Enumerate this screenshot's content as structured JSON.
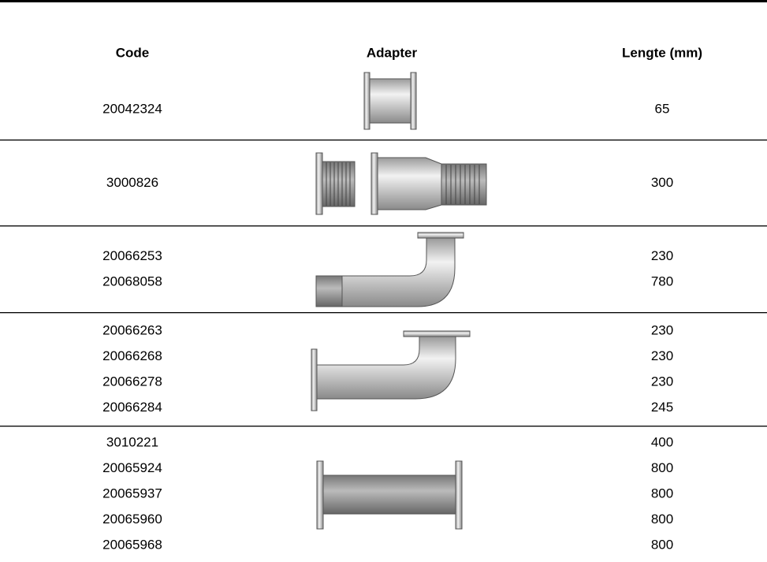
{
  "table": {
    "headers": [
      "Code",
      "Adapter",
      "Lengte (mm)"
    ],
    "groups": [
      {
        "codes": [
          "20042324"
        ],
        "lengths": [
          "65"
        ]
      },
      {
        "codes": [
          "3000826"
        ],
        "lengths": [
          "300"
        ]
      },
      {
        "codes": [
          "20066253",
          "20068058"
        ],
        "lengths": [
          "230",
          "780"
        ]
      },
      {
        "codes": [
          "20066263",
          "20066268",
          "20066278",
          "20066284"
        ],
        "lengths": [
          "230",
          "230",
          "230",
          "245"
        ]
      },
      {
        "codes": [
          "3010221",
          "20065924",
          "20065937",
          "20065960",
          "20065968"
        ],
        "lengths": [
          "400",
          "800",
          "800",
          "800",
          "800"
        ]
      }
    ]
  }
}
